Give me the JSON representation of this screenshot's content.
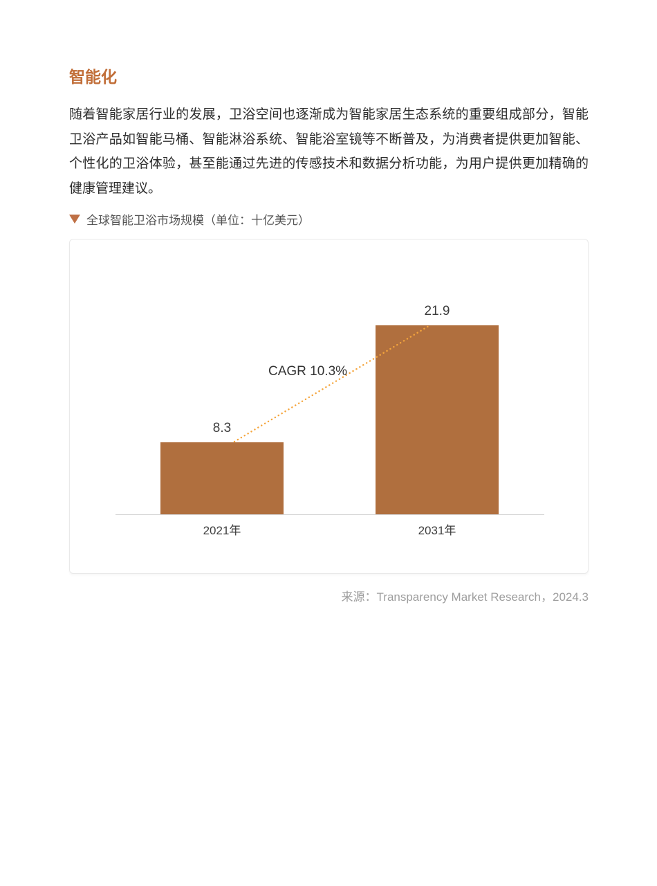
{
  "page": {
    "heading": "智能化",
    "paragraph": "随着智能家居行业的发展，卫浴空间也逐渐成为智能家居生态系统的重要组成部分，智能卫浴产品如智能马桶、智能淋浴系统、智能浴室镜等不断普及，为消费者提供更加智能、个性化的卫浴体验，甚至能通过先进的传感技术和数据分析功能，为用户提供更加精确的健康管理建议。",
    "source": "来源：Transparency Market Research，2024.3"
  },
  "figure": {
    "marker_icon": "triangle-down",
    "caption": "全球智能卫浴市场规模（单位：十亿美元）"
  },
  "chart_data": {
    "type": "bar",
    "title": "全球智能卫浴市场规模",
    "unit": "十亿美元",
    "categories": [
      "2021年",
      "2031年"
    ],
    "values": [
      8.3,
      21.9
    ],
    "value_labels": [
      "8.3",
      "21.9"
    ],
    "annotation": "CAGR 10.3%",
    "ylim": [
      0,
      24.2
    ],
    "grid": false,
    "legend": false,
    "bar_color": "#b06f3e",
    "annotation_line_color": "#f5a53c",
    "axis_color": "#d5d5d5"
  },
  "colors": {
    "heading": "#c16e38",
    "body_text": "#2e2e2e",
    "caption_text": "#545454",
    "source_text": "#9e9e9e",
    "card_border": "#e9e9e9"
  }
}
